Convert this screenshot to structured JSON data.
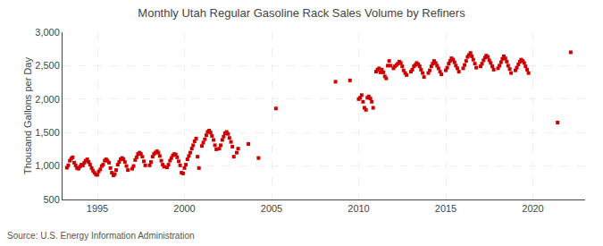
{
  "chart_data": {
    "type": "scatter",
    "title": "Monthly Utah Regular Gasoline Rack Sales Volume by Refiners",
    "ylabel": "Thousand Gallons per Day",
    "annotations": [
      "Source: U.S. Energy Information Administration"
    ],
    "color": "#cc0000",
    "marker": "square",
    "grid": true,
    "xlim": [
      1993.0,
      2023.0
    ],
    "xticks": [
      1995,
      2000,
      2005,
      2010,
      2015,
      2020
    ],
    "ylim": [
      500,
      3000
    ],
    "yticks": [
      500,
      {
        "value": 1000,
        "label": "1,000"
      },
      {
        "value": 1500,
        "label": "1,500"
      },
      {
        "value": 2000,
        "label": "2,000"
      },
      {
        "value": 2500,
        "label": "2,500"
      },
      {
        "value": 3000,
        "label": "3,000"
      }
    ],
    "x": [
      1993.25,
      1993.33,
      1993.42,
      1993.5,
      1993.58,
      1993.67,
      1993.75,
      1993.83,
      1993.92,
      1994.0,
      1994.08,
      1994.17,
      1994.25,
      1994.33,
      1994.42,
      1994.5,
      1994.58,
      1994.67,
      1994.75,
      1994.83,
      1994.92,
      1995.0,
      1995.08,
      1995.17,
      1995.25,
      1995.33,
      1995.42,
      1995.5,
      1995.58,
      1995.67,
      1995.75,
      1995.83,
      1995.92,
      1996.0,
      1996.08,
      1996.17,
      1996.25,
      1996.33,
      1996.42,
      1996.5,
      1996.58,
      1996.67,
      1996.75,
      1997.0,
      1997.08,
      1997.17,
      1997.25,
      1997.33,
      1997.42,
      1997.5,
      1997.58,
      1997.67,
      1997.75,
      1998.0,
      1998.08,
      1998.17,
      1998.25,
      1998.33,
      1998.42,
      1998.5,
      1998.58,
      1998.67,
      1998.75,
      1998.83,
      1999.0,
      1999.08,
      1999.17,
      1999.25,
      1999.33,
      1999.42,
      1999.5,
      1999.58,
      1999.67,
      1999.75,
      1999.83,
      1999.92,
      2000.0,
      2000.08,
      2000.17,
      2000.25,
      2000.33,
      2000.42,
      2000.5,
      2000.58,
      2000.67,
      2000.75,
      2000.83,
      2001.0,
      2001.08,
      2001.17,
      2001.25,
      2001.33,
      2001.42,
      2001.5,
      2001.58,
      2001.67,
      2001.75,
      2001.83,
      2002.0,
      2002.08,
      2002.17,
      2002.25,
      2002.33,
      2002.42,
      2002.5,
      2002.58,
      2002.67,
      2002.75,
      2002.83,
      2003.0,
      2003.08,
      2003.67,
      2004.25,
      2005.25,
      2008.67,
      2009.5,
      2010.0,
      2010.08,
      2010.17,
      2010.25,
      2010.33,
      2010.42,
      2010.5,
      2010.58,
      2010.67,
      2010.75,
      2010.83,
      2011.0,
      2011.08,
      2011.17,
      2011.25,
      2011.33,
      2011.42,
      2011.5,
      2011.58,
      2011.67,
      2011.75,
      2011.83,
      2012.0,
      2012.08,
      2012.17,
      2012.25,
      2012.33,
      2012.42,
      2012.5,
      2012.58,
      2012.67,
      2012.75,
      2013.0,
      2013.08,
      2013.17,
      2013.25,
      2013.33,
      2013.42,
      2013.5,
      2013.58,
      2013.67,
      2013.75,
      2014.0,
      2014.08,
      2014.17,
      2014.25,
      2014.33,
      2014.42,
      2014.5,
      2014.58,
      2014.67,
      2014.75,
      2015.0,
      2015.08,
      2015.17,
      2015.25,
      2015.33,
      2015.42,
      2015.5,
      2015.58,
      2015.67,
      2015.75,
      2016.0,
      2016.08,
      2016.17,
      2016.25,
      2016.33,
      2016.42,
      2016.5,
      2016.58,
      2016.67,
      2016.75,
      2017.0,
      2017.08,
      2017.17,
      2017.25,
      2017.33,
      2017.42,
      2017.5,
      2017.58,
      2017.67,
      2017.75,
      2018.0,
      2018.08,
      2018.17,
      2018.25,
      2018.33,
      2018.42,
      2018.5,
      2018.58,
      2018.67,
      2018.75,
      2019.0,
      2019.08,
      2019.17,
      2019.25,
      2019.33,
      2019.42,
      2019.5,
      2019.58,
      2019.67,
      2019.75,
      2021.42,
      2022.17
    ],
    "values": [
      975,
      1010,
      1080,
      1110,
      1130,
      1050,
      1010,
      970,
      960,
      990,
      1020,
      1010,
      1050,
      1080,
      1100,
      1060,
      1020,
      970,
      930,
      900,
      870,
      870,
      920,
      950,
      1000,
      1020,
      1080,
      1100,
      1080,
      1050,
      970,
      900,
      860,
      880,
      940,
      1020,
      1060,
      1100,
      1120,
      1100,
      1060,
      1000,
      940,
      960,
      1000,
      1090,
      1130,
      1180,
      1200,
      1180,
      1140,
      1070,
      1010,
      1010,
      1060,
      1140,
      1180,
      1200,
      1220,
      1200,
      1150,
      1080,
      1020,
      990,
      980,
      1020,
      1080,
      1120,
      1160,
      1180,
      1170,
      1130,
      1070,
      1010,
      900,
      890,
      970,
      1020,
      1100,
      1150,
      1200,
      1260,
      1310,
      1370,
      1410,
      1140,
      970,
      1300,
      1350,
      1400,
      1460,
      1510,
      1530,
      1500,
      1450,
      1390,
      1310,
      1250,
      1260,
      1310,
      1390,
      1440,
      1490,
      1510,
      1480,
      1420,
      1360,
      1290,
      1140,
      1200,
      1260,
      1330,
      1120,
      1860,
      2260,
      2280,
      2000,
      2020,
      2060,
      1960,
      1870,
      1840,
      2020,
      2040,
      2010,
      1960,
      1870,
      2410,
      2440,
      2460,
      2400,
      2440,
      2400,
      2340,
      2310,
      2500,
      2570,
      2500,
      2460,
      2490,
      2510,
      2530,
      2560,
      2540,
      2490,
      2430,
      2390,
      2360,
      2410,
      2440,
      2490,
      2510,
      2540,
      2520,
      2490,
      2440,
      2390,
      2330,
      2390,
      2430,
      2490,
      2530,
      2570,
      2540,
      2500,
      2460,
      2410,
      2370,
      2430,
      2470,
      2530,
      2570,
      2610,
      2590,
      2550,
      2500,
      2460,
      2410,
      2460,
      2510,
      2570,
      2630,
      2660,
      2690,
      2640,
      2590,
      2530,
      2470,
      2490,
      2530,
      2580,
      2620,
      2650,
      2630,
      2580,
      2540,
      2490,
      2440,
      2460,
      2500,
      2550,
      2600,
      2640,
      2610,
      2560,
      2500,
      2450,
      2390,
      2430,
      2470,
      2520,
      2560,
      2590,
      2570,
      2540,
      2490,
      2440,
      2390,
      1650,
      2700
    ]
  }
}
